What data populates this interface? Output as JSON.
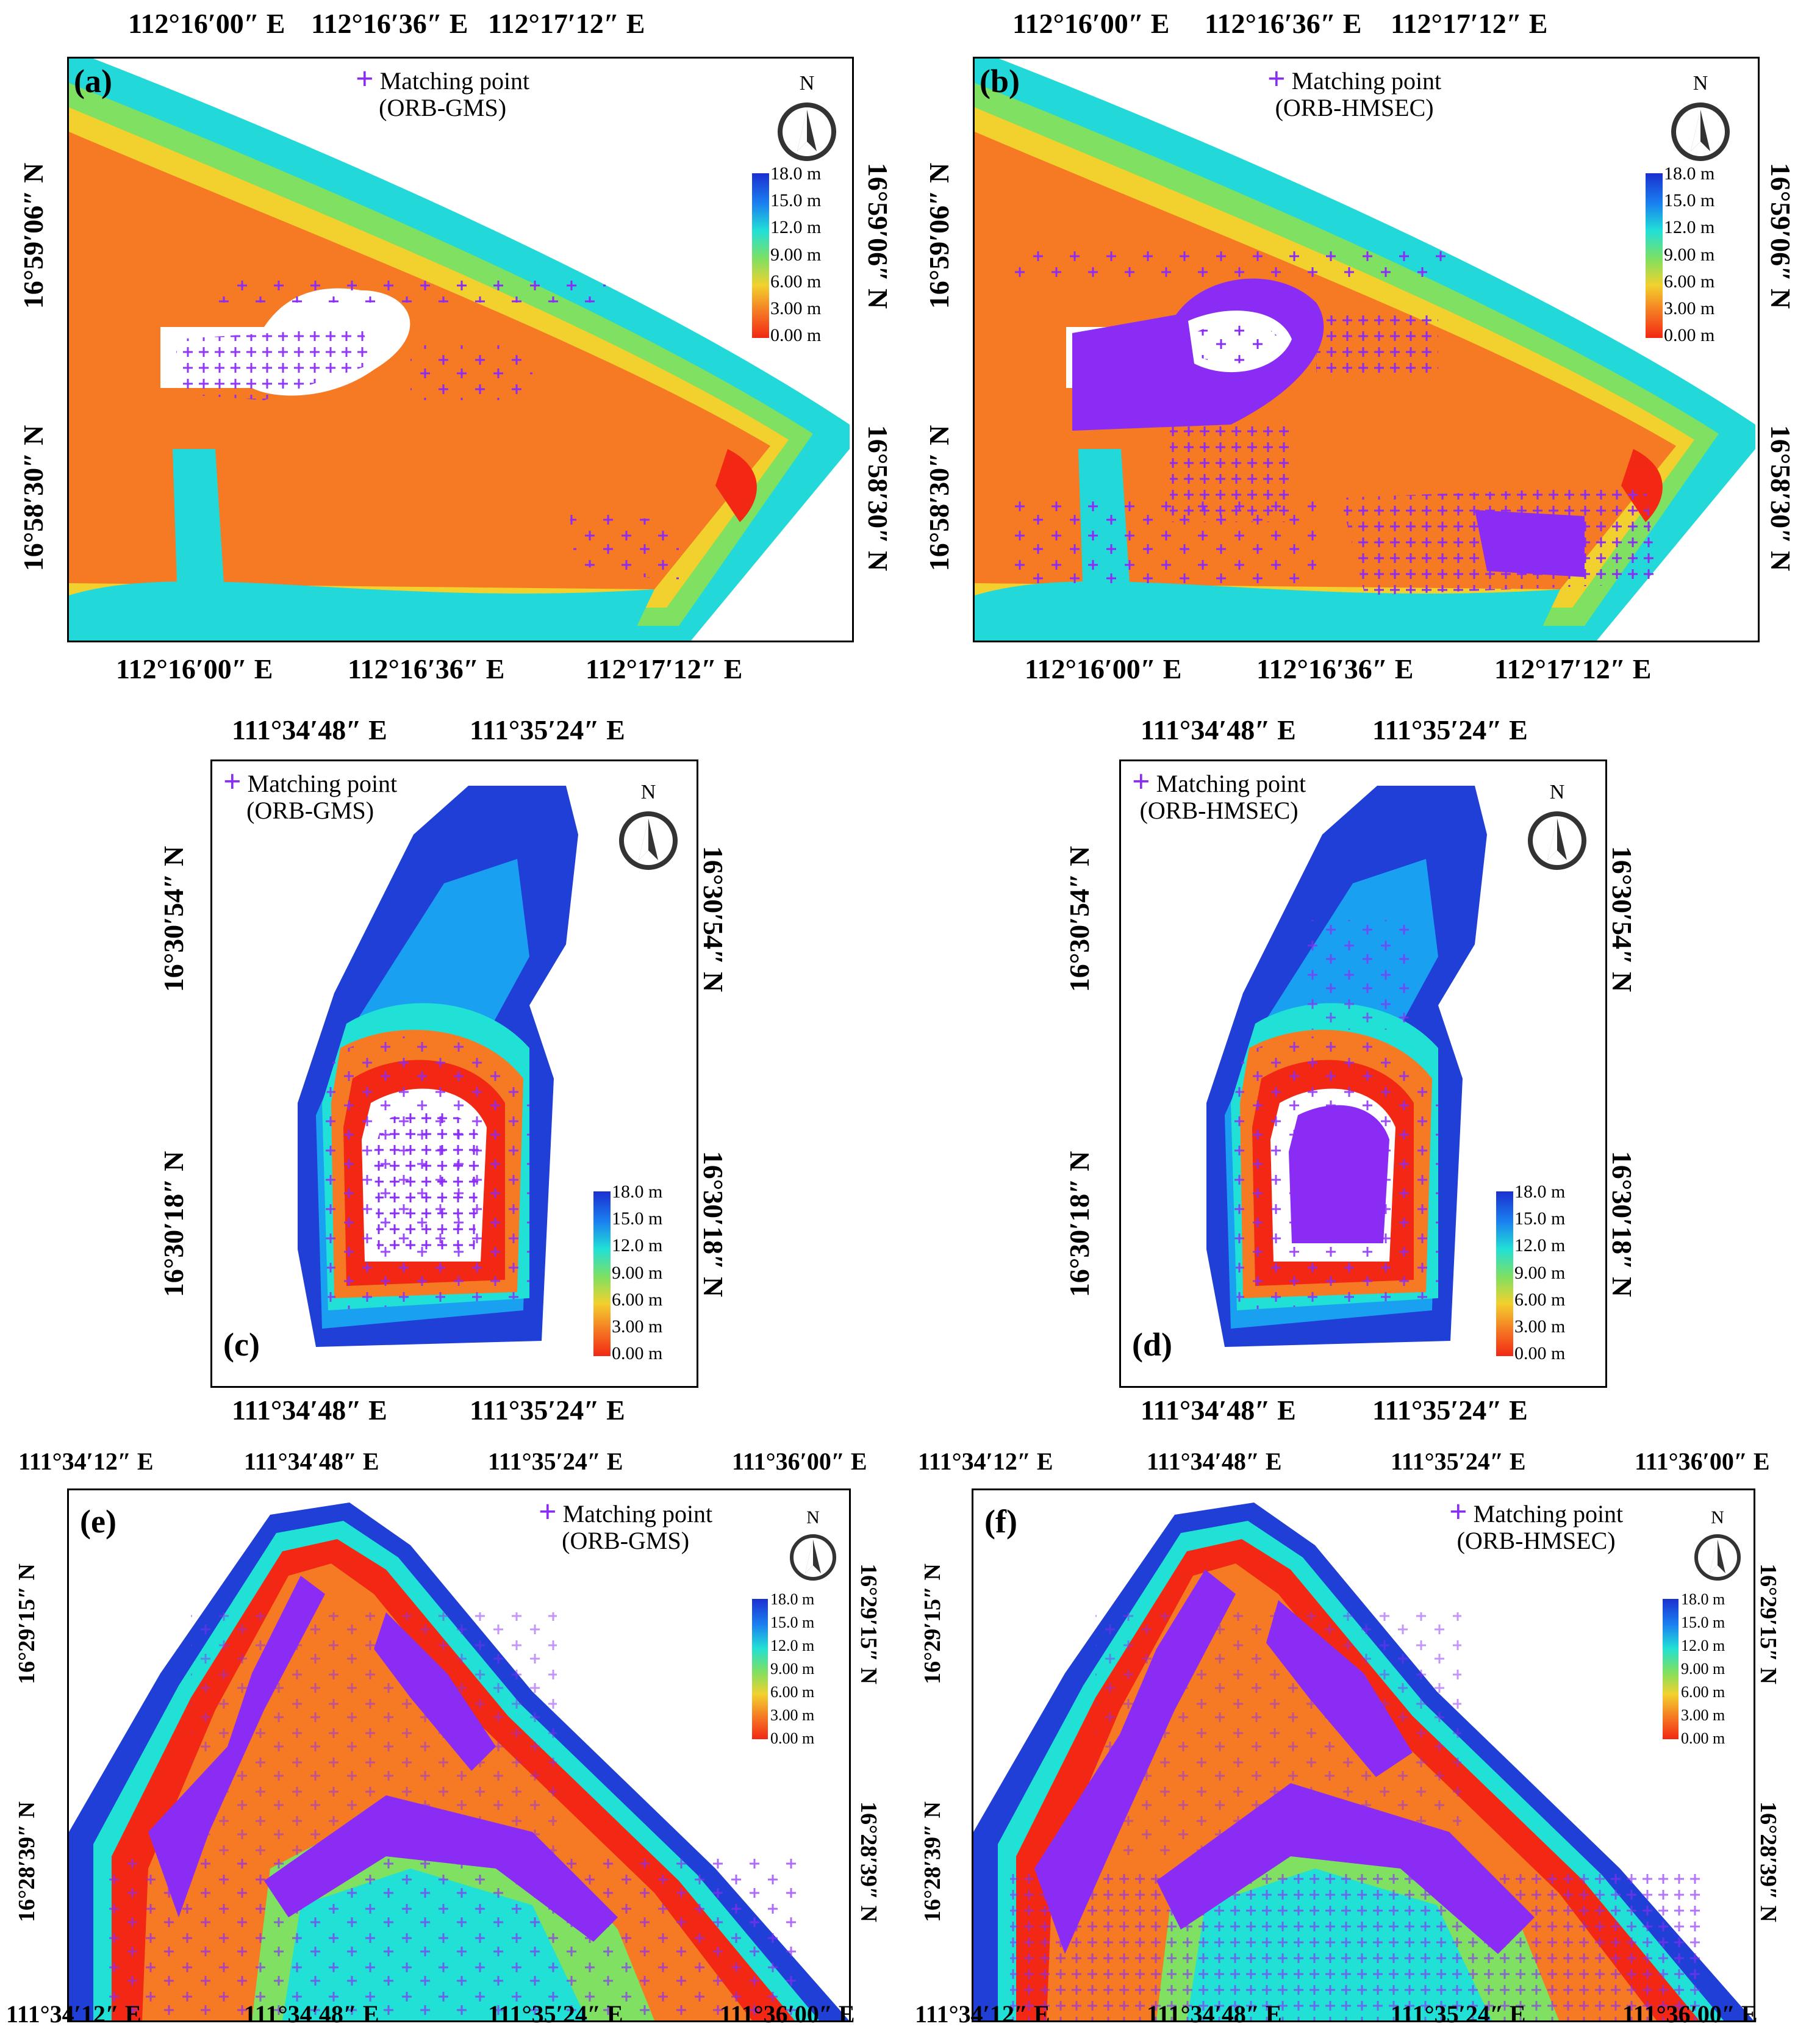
{
  "figure": "Bathymetry maps with ORB matching points",
  "legend_symbol": "+",
  "legend_text": "Matching point",
  "colorbar_ticks": [
    "18.0 m",
    "15.0 m",
    "12.0 m",
    "9.00 m",
    "6.00 m",
    "3.00 m",
    "0.00  m"
  ],
  "colors": {
    "deep": "#1f3fd6",
    "mid_deep": "#1aa0f0",
    "cyan": "#21e0d6",
    "green": "#7fe061",
    "yellow": "#f2d12e",
    "orange": "#f57a23",
    "red": "#f22814",
    "points": "#8b2cf5",
    "land": "#ffffff"
  },
  "panels": [
    {
      "id": "a",
      "label": "(a)",
      "method": "(ORB-GMS)",
      "x_labels": [
        "112°16′00″ E",
        "112°16′36″ E",
        "112°17′12″ E"
      ],
      "y_labels": [
        "16°59′06″ N",
        "16°58′30″ N"
      ]
    },
    {
      "id": "b",
      "label": "(b)",
      "method": "(ORB-HMSEC)",
      "x_labels": [
        "112°16′00″ E",
        "112°16′36″ E",
        "112°17′12″ E"
      ],
      "y_labels": [
        "16°59′06″ N",
        "16°58′30″ N"
      ]
    },
    {
      "id": "c",
      "label": "(c)",
      "method": "(ORB-GMS)",
      "x_labels": [
        "111°34′48″ E",
        "111°35′24″ E"
      ],
      "y_labels": [
        "16°30′54″ N",
        "16°30′18″ N"
      ]
    },
    {
      "id": "d",
      "label": "(d)",
      "method": "(ORB-HMSEC)",
      "x_labels": [
        "111°34′48″ E",
        "111°35′24″ E"
      ],
      "y_labels": [
        "16°30′54″ N",
        "16°30′18″ N"
      ]
    },
    {
      "id": "e",
      "label": "(e)",
      "method": "(ORB-GMS)",
      "x_labels": [
        "111°34′12″ E",
        "111°34′48″ E",
        "111°35′24″ E",
        "111°36′00″ E"
      ],
      "y_labels": [
        "16°29′15″ N",
        "16°28′39″ N"
      ]
    },
    {
      "id": "f",
      "label": "(f)",
      "method": "(ORB-HMSEC)",
      "x_labels": [
        "111°34′12″ E",
        "111°34′48″ E",
        "111°35′24″ E",
        "111°36′00″ E"
      ],
      "y_labels": [
        "16°29′15″ N",
        "16°28′39″ N"
      ]
    }
  ],
  "north_label": "N"
}
